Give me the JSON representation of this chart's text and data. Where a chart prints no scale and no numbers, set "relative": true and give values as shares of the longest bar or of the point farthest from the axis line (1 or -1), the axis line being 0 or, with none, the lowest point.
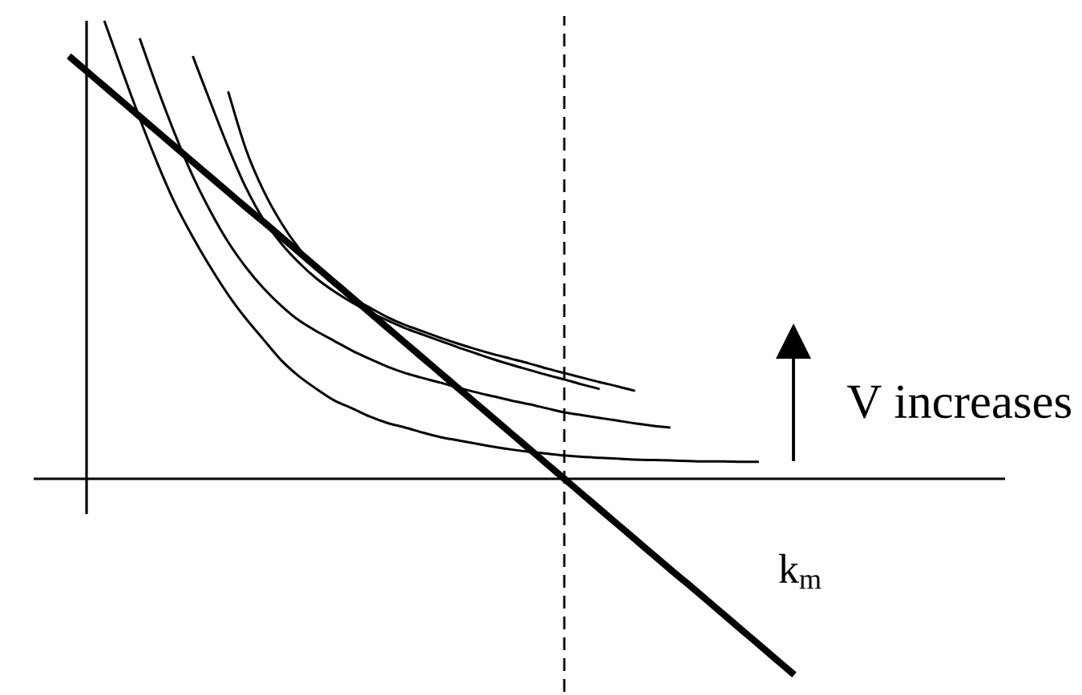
{
  "chart_data": {
    "type": "line",
    "relative": true,
    "categories": [
      null,
      null,
      null,
      null,
      null,
      null,
      null,
      null,
      null,
      null,
      null,
      null,
      null,
      null,
      null,
      null,
      null,
      null,
      null,
      null,
      null,
      null,
      null,
      null,
      null,
      null,
      null,
      null,
      null,
      null,
      null,
      null,
      null,
      null,
      null,
      null,
      null,
      null,
      null,
      null,
      null,
      null
    ],
    "series": [
      {
        "color": "#000000",
        "values": [
          null,
          null,
          1.0,
          0.892,
          0.787,
          0.689,
          0.601,
          0.528,
          0.462,
          0.402,
          0.35,
          0.304,
          0.259,
          0.224,
          0.196,
          0.171,
          0.154,
          0.136,
          0.122,
          0.112,
          0.101,
          0.091,
          0.084,
          0.077,
          0.07,
          0.064,
          0.059,
          0.055,
          0.051,
          0.048,
          0.046,
          0.044,
          0.042,
          0.041,
          0.04,
          0.039,
          0.038,
          0.038,
          0.037,
          0.037,
          null,
          null
        ]
      },
      {
        "color": "#000000",
        "values": [
          null,
          null,
          null,
          null,
          0.962,
          0.853,
          0.752,
          0.661,
          0.584,
          0.517,
          0.462,
          0.416,
          0.378,
          0.346,
          0.322,
          0.301,
          0.28,
          0.262,
          0.245,
          0.231,
          0.22,
          0.21,
          0.199,
          0.189,
          0.18,
          0.171,
          0.163,
          0.154,
          0.145,
          0.139,
          0.133,
          0.127,
          0.121,
          0.116,
          0.112,
          null,
          null,
          null,
          null,
          null,
          null,
          null
        ]
      },
      {
        "color": "#000000",
        "values": [
          null,
          null,
          null,
          null,
          null,
          null,
          null,
          0.923,
          0.822,
          0.724,
          0.636,
          0.566,
          0.514,
          0.472,
          0.437,
          0.409,
          0.385,
          0.364,
          0.346,
          0.329,
          0.315,
          0.301,
          0.287,
          0.274,
          0.261,
          0.249,
          0.238,
          0.227,
          0.217,
          0.206,
          0.196,
          null,
          null,
          null,
          null,
          null,
          null,
          null,
          null,
          null,
          null,
          null
        ]
      },
      {
        "color": "#000000",
        "values": [
          null,
          null,
          null,
          null,
          null,
          null,
          null,
          null,
          null,
          0.846,
          0.72,
          0.629,
          0.559,
          0.503,
          0.458,
          0.423,
          0.395,
          0.374,
          0.353,
          0.336,
          0.322,
          0.308,
          0.295,
          0.283,
          0.272,
          0.262,
          0.252,
          0.241,
          0.231,
          0.221,
          0.211,
          0.202,
          0.192,
          null,
          null,
          null,
          null,
          null,
          null,
          null,
          null,
          null
        ]
      },
      {
        "name": "k$_{m}$",
        "color": "#000000",
        "values": [
          0.923,
          0.89,
          0.857,
          0.824,
          0.791,
          0.758,
          0.725,
          0.692,
          0.659,
          0.626,
          0.593,
          0.561,
          0.528,
          0.495,
          0.462,
          0.429,
          0.396,
          0.363,
          0.33,
          0.297,
          0.264,
          0.231,
          0.198,
          0.165,
          0.132,
          0.099,
          0.066,
          0.033,
          0.0,
          -0.033,
          -0.066,
          -0.099,
          -0.132,
          -0.165,
          -0.198,
          -0.23,
          -0.263,
          -0.296,
          -0.329,
          -0.362,
          -0.395,
          -0.428
        ]
      }
    ],
    "annotations": [
      "V increases"
    ]
  }
}
